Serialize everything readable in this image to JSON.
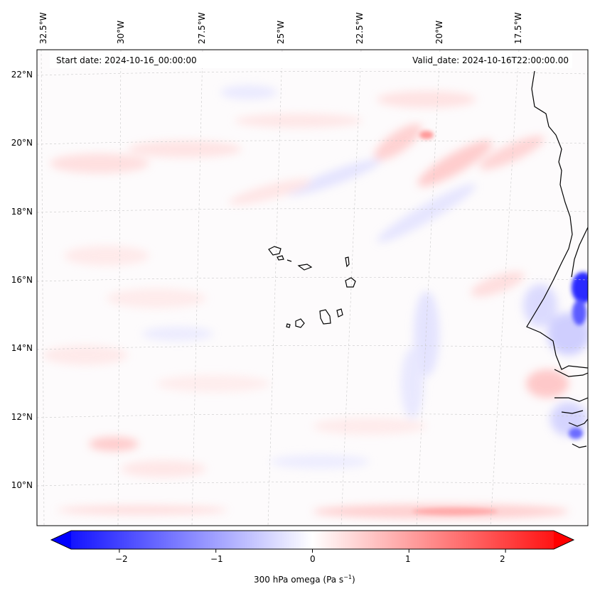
{
  "header": {
    "start_date": "Start date: 2024-10-16_00:00:00",
    "valid_date": "Valid_date: 2024-10-16T22:00:00.00"
  },
  "lon_labels": [
    "32.5°W",
    "30°W",
    "27.5°W",
    "25°W",
    "22.5°W",
    "20°W",
    "17.5°W"
  ],
  "lat_labels": [
    "22°N",
    "20°N",
    "18°N",
    "16°N",
    "14°N",
    "12°N",
    "10°N"
  ],
  "colorbar": {
    "ticks": [
      "−2",
      "−1",
      "0",
      "1",
      "2"
    ],
    "tick_values": [
      -2,
      -1,
      0,
      1,
      2
    ],
    "range": [
      -2.5,
      2.5
    ],
    "label_main": "300 hPa omega (Pa s",
    "label_exp": "−1",
    "label_close": ")",
    "low_color": "#0000ff",
    "mid_color": "#ffffff",
    "high_color": "#ff0000"
  }
}
